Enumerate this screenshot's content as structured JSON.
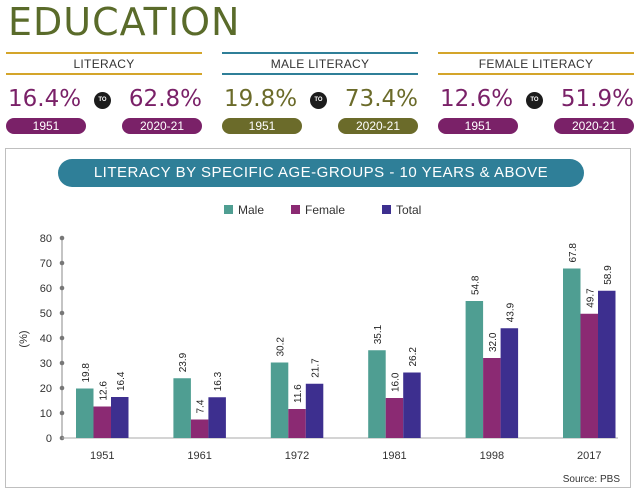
{
  "header": {
    "title": "EDUCATION"
  },
  "stats": [
    {
      "label": "LITERACY",
      "from_value": "16.4%",
      "to_value": "62.8%",
      "from_year": "1951",
      "to_year": "2020-21",
      "to_word": "TO",
      "value_color": "#7a2168",
      "pill_color": "#7a2168",
      "line_color": "#d4a52a"
    },
    {
      "label": "MALE LITERACY",
      "from_value": "19.8%",
      "to_value": "73.4%",
      "from_year": "1951",
      "to_year": "2020-21",
      "to_word": "TO",
      "value_color": "#6b6b2a",
      "pill_color": "#6b6b2a",
      "line_color": "#2f7f98"
    },
    {
      "label": "FEMALE LITERACY",
      "from_value": "12.6%",
      "to_value": "51.9%",
      "from_year": "1951",
      "to_year": "2020-21",
      "to_word": "TO",
      "value_color": "#7a2168",
      "pill_color": "#7a2168",
      "line_color": "#d4a52a"
    }
  ],
  "chart_data": {
    "type": "bar",
    "title": "LITERACY BY SPECIFIC AGE-GROUPS - 10 YEARS & ABOVE",
    "ylabel": "(%)",
    "xlabel": "",
    "categories": [
      "1951",
      "1961",
      "1972",
      "1981",
      "1998",
      "2017"
    ],
    "ylim": [
      0,
      80
    ],
    "yticks": [
      "0",
      "10",
      "20",
      "30",
      "40",
      "50",
      "60",
      "70",
      "80"
    ],
    "legend_position": "top-center",
    "grid": false,
    "series": [
      {
        "name": "Male",
        "color": "#4f9e92",
        "values": [
          19.8,
          23.9,
          30.2,
          35.1,
          54.8,
          67.8
        ],
        "labels": [
          "19.8",
          "23.9",
          "30.2",
          "35.1",
          "54.8",
          "67.8"
        ]
      },
      {
        "name": "Female",
        "color": "#8b2a73",
        "values": [
          12.6,
          7.4,
          11.6,
          16.0,
          32.0,
          49.7
        ],
        "labels": [
          "12.6",
          "7.4",
          "11.6",
          "16.0",
          "32.0",
          "49.7"
        ]
      },
      {
        "name": "Total",
        "color": "#3d2f8f",
        "values": [
          16.4,
          16.3,
          21.7,
          26.2,
          43.9,
          58.9
        ],
        "labels": [
          "16.4",
          "16.3",
          "21.7",
          "26.2",
          "43.9",
          "58.9"
        ]
      }
    ]
  },
  "footer": {
    "source": "Source: PBS"
  }
}
